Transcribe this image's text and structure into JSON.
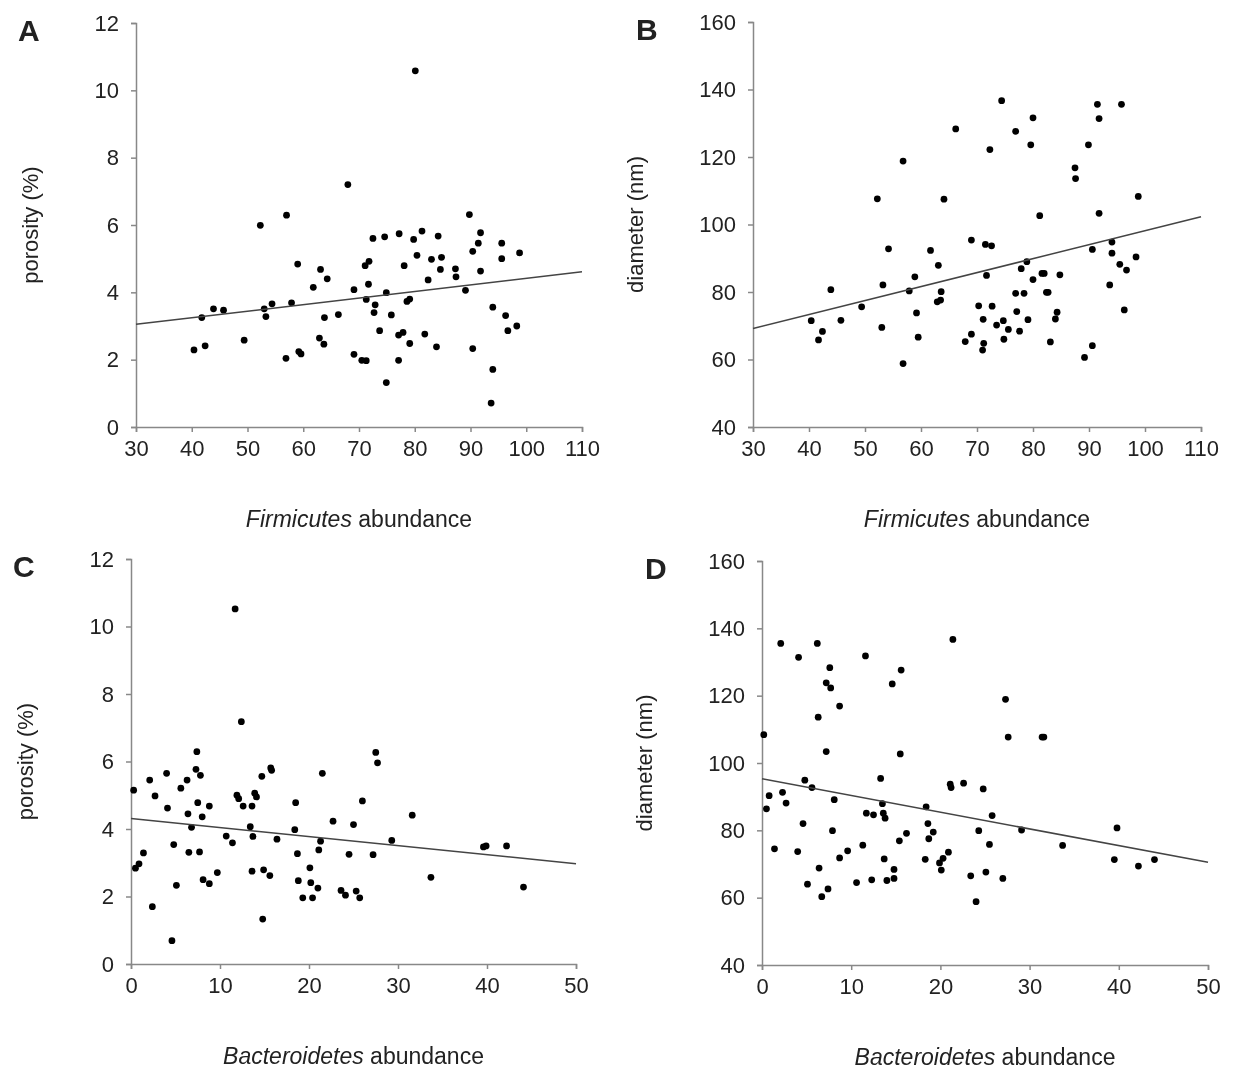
{
  "chart_data": [
    {
      "type": "scatter",
      "title": "A",
      "xlabel": "Firmicutes abundance",
      "ylabel": "porosity (%)",
      "xlim": [
        30,
        110
      ],
      "xticks": [
        30,
        40,
        50,
        60,
        70,
        80,
        90,
        100,
        110
      ],
      "ylim": [
        0,
        12
      ],
      "yticks": [
        0,
        2,
        4,
        6,
        8,
        10,
        12
      ],
      "series": [
        {
          "marker": "circle",
          "color": "#000000",
          "x": [
            40.4,
            41.8,
            42.4,
            43.9,
            45.7,
            49.4,
            52.3,
            53.0,
            53.3,
            54.4,
            56.9,
            57.0,
            57.9,
            59.0,
            59.2,
            59.6,
            61.8,
            63.1,
            62.9,
            63.7,
            63.8,
            64.3,
            66.3,
            68.0,
            69.1,
            69.1,
            70.5,
            71.3,
            71.1,
            71.8,
            71.7,
            71.3,
            72.9,
            72.7,
            72.5,
            74.6,
            73.7,
            74.9,
            74.9,
            75.8,
            77.2,
            77.1,
            77.9,
            77.1,
            78.1,
            78.6,
            79.1,
            79.1,
            79.8,
            80.1,
            80.4,
            81.3,
            81.8,
            82.4,
            83.0,
            83.9,
            84.2,
            84.8,
            84.6,
            87.3,
            87.4,
            89.1,
            89.8,
            90.4,
            90.4,
            91.4,
            91.8,
            91.8,
            94.0,
            94.0,
            93.7,
            95.6,
            95.6,
            96.3,
            96.7,
            98.3,
            98.8
          ],
          "values": [
            2.29,
            3.25,
            2.41,
            3.51,
            3.47,
            2.58,
            5.99,
            3.51,
            3.28,
            3.66,
            2.04,
            6.29,
            3.69,
            4.84,
            2.24,
            2.17,
            4.15,
            4.68,
            2.64,
            2.46,
            3.25,
            4.4,
            3.34,
            7.2,
            4.08,
            2.16,
            1.98,
            1.97,
            4.79,
            4.92,
            4.24,
            3.79,
            3.63,
            3.4,
            5.6,
            5.65,
            2.86,
            3.99,
            1.32,
            3.33,
            5.74,
            2.73,
            2.81,
            1.98,
            4.79,
            3.73,
            3.8,
            2.48,
            5.57,
            10.58,
            5.1,
            5.82,
            2.76,
            4.37,
            4.98,
            2.38,
            5.67,
            5.04,
            4.68,
            4.7,
            4.46,
            4.06,
            6.31,
            5.22,
            2.33,
            5.46,
            5.77,
            4.63,
            3.56,
            1.71,
            0.71,
            5.46,
            5.0,
            3.31,
            2.86,
            3.0,
            5.17
          ]
        },
        {
          "type": "line",
          "marker": "none",
          "color": "#444444",
          "x": [
            30,
            110
          ],
          "values": [
            3.05,
            4.61
          ]
        }
      ]
    },
    {
      "type": "scatter",
      "title": "B",
      "xlabel": "Firmicutes abundance",
      "ylabel": "diameter (nm)",
      "xlim": [
        30,
        110
      ],
      "xticks": [
        30,
        40,
        50,
        60,
        70,
        80,
        90,
        100,
        110
      ],
      "ylim": [
        40,
        160
      ],
      "yticks": [
        40,
        60,
        80,
        100,
        120,
        140,
        160
      ],
      "series": [
        {
          "marker": "circle",
          "color": "#000000",
          "x": [
            40.4,
            42.4,
            41.7,
            43.9,
            45.7,
            49.4,
            52.2,
            53.2,
            53.0,
            54.2,
            56.8,
            56.8,
            57.9,
            58.9,
            59.2,
            59.5,
            61.7,
            63.1,
            62.9,
            63.6,
            63.5,
            64.1,
            66.2,
            67.9,
            69.0,
            69.0,
            70.3,
            71.1,
            71.2,
            71.0,
            71.5,
            72.6,
            71.7,
            72.7,
            72.3,
            73.5,
            74.4,
            74.7,
            74.8,
            75.6,
            76.9,
            76.9,
            77.1,
            77.6,
            77.9,
            78.4,
            78.9,
            79.1,
            79.6,
            80.0,
            80.0,
            81.2,
            81.6,
            82.0,
            82.4,
            82.7,
            83.1,
            84.0,
            84.3,
            84.8,
            87.5,
            87.6,
            89.2,
            89.9,
            90.6,
            90.6,
            91.5,
            91.8,
            91.8,
            93.7,
            94.1,
            94.1,
            95.5,
            95.8,
            96.3,
            96.7,
            98.4,
            98.8
          ],
          "values": [
            71.5,
            68.3,
            65.8,
            80.7,
            71.6,
            75.6,
            107.6,
            82.1,
            69.5,
            92.8,
            118.8,
            58.8,
            80.3,
            84.5,
            73.8,
            66.6,
            92.3,
            87.9,
            77.1,
            80.1,
            77.6,
            107.5,
            128.3,
            65.3,
            95.4,
            67.5,
            75.9,
            71.9,
            64.8,
            62.8,
            94.1,
            93.7,
            84.9,
            75.8,
            122.2,
            70.2,
            136.7,
            71.5,
            66.0,
            68.9,
            127.6,
            79.6,
            74.2,
            68.4,
            86.9,
            79.6,
            89.0,
            71.8,
            123.6,
            131.6,
            83.7,
            102.6,
            85.5,
            85.5,
            79.9,
            79.9,
            65.2,
            72.0,
            74.0,
            85.1,
            116.8,
            113.6,
            60.6,
            123.6,
            92.6,
            64.1,
            135.6,
            131.4,
            103.3,
            82.1,
            94.8,
            91.5,
            88.2,
            135.6,
            74.7,
            86.5,
            90.4,
            108.3
          ]
        },
        {
          "type": "line",
          "marker": "none",
          "color": "#444444",
          "x": [
            30,
            110
          ],
          "values": [
            69.2,
            102.3
          ]
        }
      ]
    },
    {
      "type": "scatter",
      "title": "C",
      "xlabel": "Bacteroidetes abundance",
      "ylabel": "porosity (%)",
      "xlim": [
        0,
        50
      ],
      "xticks": [
        0,
        10,
        20,
        30,
        40,
        50
      ],
      "ylim": [
        0,
        12
      ],
      "yticks": [
        0,
        2,
        4,
        6,
        8,
        10,
        12
      ],
      "series": [
        {
          "marker": "circle",
          "color": "#000000",
          "x": [
            0.3,
            0.5,
            0.9,
            1.4,
            2.1,
            2.4,
            2.7,
            4.0,
            4.1,
            4.6,
            4.8,
            5.1,
            5.6,
            6.3,
            6.4,
            6.5,
            6.8,
            7.3,
            7.4,
            7.5,
            7.8,
            7.7,
            8.0,
            8.1,
            8.8,
            8.8,
            9.7,
            10.7,
            11.4,
            11.7,
            11.9,
            12.1,
            12.4,
            12.6,
            13.4,
            13.6,
            13.6,
            13.7,
            13.9,
            14.1,
            14.7,
            14.8,
            14.9,
            15.6,
            15.7,
            15.8,
            16.4,
            18.4,
            18.5,
            18.7,
            18.8,
            19.3,
            20.1,
            20.2,
            20.4,
            21.0,
            21.1,
            21.3,
            21.5,
            22.7,
            23.6,
            24.1,
            24.5,
            25.0,
            25.3,
            25.7,
            26.0,
            27.2,
            27.5,
            27.7,
            29.3,
            31.6,
            33.7,
            39.6,
            39.9,
            42.2,
            44.1
          ],
          "values": [
            5.15,
            2.84,
            2.97,
            3.29,
            5.45,
            1.7,
            4.98,
            5.65,
            4.62,
            0.69,
            3.54,
            2.33,
            5.21,
            5.45,
            4.45,
            3.31,
            4.05,
            5.77,
            6.29,
            4.78,
            5.59,
            3.32,
            4.36,
            2.5,
            4.68,
            2.38,
            2.71,
            3.79,
            3.59,
            10.52,
            5.0,
            4.9,
            7.18,
            4.68,
            4.07,
            4.68,
            2.75,
            3.78,
            5.06,
            4.95,
            5.56,
            1.33,
            2.79,
            2.62,
            5.81,
            5.74,
            3.7,
            3.98,
            4.78,
            3.27,
            2.47,
            1.96,
            2.85,
            2.41,
            1.96,
            2.25,
            3.38,
            3.64,
            5.65,
            4.23,
            2.18,
            2.04,
            3.25,
            4.13,
            2.16,
            1.96,
            4.83,
            3.24,
            6.27,
            5.96,
            3.66,
            4.41,
            2.57,
            3.47,
            3.5,
            3.5,
            2.28
          ]
        },
        {
          "type": "line",
          "marker": "none",
          "color": "#444444",
          "x": [
            0,
            50
          ],
          "values": [
            4.31,
            2.97
          ]
        }
      ]
    },
    {
      "type": "scatter",
      "title": "D",
      "xlabel": "Bacteroidetes abundance",
      "ylabel": "diameter (nm)",
      "xlim": [
        0,
        50
      ],
      "xticks": [
        0,
        10,
        20,
        30,
        40,
        50
      ],
      "ylim": [
        40,
        160
      ],
      "yticks": [
        40,
        60,
        80,
        100,
        120,
        140,
        160
      ],
      "series": [
        {
          "marker": "circle",
          "color": "#000000",
          "x": [
            0.2,
            0.5,
            0.8,
            1.4,
            2.1,
            2.3,
            2.7,
            4.0,
            4.1,
            4.6,
            4.8,
            5.1,
            5.6,
            6.2,
            6.3,
            6.4,
            6.7,
            7.2,
            7.2,
            7.4,
            7.6,
            7.7,
            8.1,
            7.9,
            8.7,
            8.7,
            9.6,
            10.6,
            11.3,
            11.6,
            11.7,
            12.3,
            12.5,
            13.3,
            13.5,
            13.6,
            13.8,
            13.7,
            14.0,
            14.6,
            14.8,
            14.8,
            15.4,
            15.5,
            15.6,
            16.2,
            18.3,
            18.4,
            18.6,
            18.7,
            19.2,
            19.9,
            20.1,
            20.3,
            20.9,
            21.1,
            21.2,
            21.4,
            22.6,
            23.4,
            24.0,
            24.3,
            24.8,
            25.1,
            25.8,
            25.5,
            27.0,
            27.3,
            27.6,
            29.1,
            31.4,
            31.6,
            33.7,
            39.5,
            39.8,
            42.2,
            44.0
          ],
          "values": [
            108.4,
            86.4,
            90.3,
            74.5,
            135.5,
            91.3,
            88.1,
            73.7,
            131.4,
            82.0,
            94.9,
            64.0,
            92.7,
            135.5,
            113.6,
            68.8,
            60.3,
            103.4,
            123.8,
            62.6,
            128.3,
            122.3,
            89.1,
            79.9,
            116.9,
            71.8,
            73.9,
            64.5,
            75.6,
            131.8,
            85.1,
            65.3,
            84.6,
            95.4,
            87.9,
            85.1,
            83.6,
            71.5,
            65.1,
            123.5,
            68.4,
            65.7,
            76.9,
            102.7,
            127.6,
            79.1,
            71.4,
            87.0,
            82.0,
            77.5,
            79.5,
            70.3,
            68.2,
            71.7,
            73.5,
            93.7,
            92.7,
            136.7,
            94.0,
            66.5,
            58.8,
            79.9,
            92.3,
            67.6,
            84.4,
            75.8,
            65.7,
            118.9,
            107.7,
            80.1,
            107.7,
            107.7,
            75.5,
            71.3,
            80.7,
            69.4,
            71.3
          ]
        },
        {
          "type": "line",
          "marker": "none",
          "color": "#444444",
          "x": [
            0,
            50
          ],
          "values": [
            95.3,
            70.5
          ]
        }
      ]
    }
  ]
}
